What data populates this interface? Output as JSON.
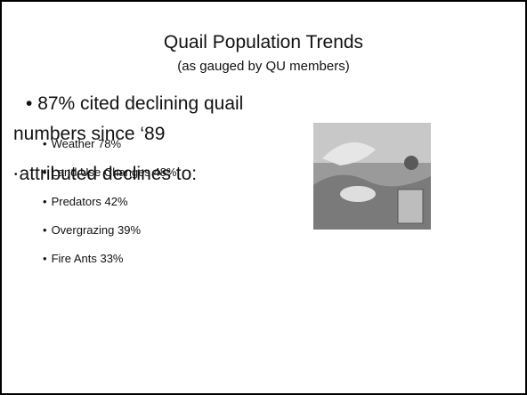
{
  "slide": {
    "title": "Quail Population Trends",
    "subtitle": "(as gauged by QU members)",
    "main_point": "87% cited declining quail numbers since ‘89",
    "list_heading": "attributed declines to:",
    "items": [
      "Weather 78%",
      "Land Use Changes 48%",
      "Predators 42%",
      "Overgrazing 39%",
      "Fire Ants 33%"
    ]
  }
}
